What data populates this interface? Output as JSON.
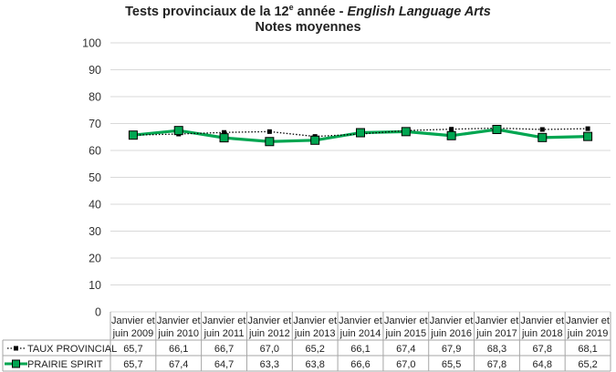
{
  "title": {
    "prefix": "Tests provinciaux de la 12",
    "sup": "e",
    "middle": " année - ",
    "italic": "English Language Arts",
    "subtitle": "Notes moyennes"
  },
  "chart_data": {
    "type": "line",
    "title": "Tests provinciaux de la 12e année - English Language Arts",
    "subtitle": "Notes moyennes",
    "ylim": [
      0,
      100
    ],
    "yticks": [
      0,
      10,
      20,
      30,
      40,
      50,
      60,
      70,
      80,
      90,
      100
    ],
    "grid": true,
    "legend": "table-bottom",
    "categories": [
      [
        "Janvier et",
        "juin 2009"
      ],
      [
        "Janvier et",
        "juin 2010"
      ],
      [
        "Janvier et",
        "juin 2011"
      ],
      [
        "Janvier et",
        "juin 2012"
      ],
      [
        "Janvier et",
        "juin 2013"
      ],
      [
        "Janvier et",
        "juin 2014"
      ],
      [
        "Janvier et",
        "juin 2015"
      ],
      [
        "Janvier et",
        "juin 2016"
      ],
      [
        "Janvier et",
        "juin 2017"
      ],
      [
        "Janvier et",
        "juin 2018"
      ],
      [
        "Janvier et",
        "juin 2019"
      ]
    ],
    "series": [
      {
        "name": "TAUX PROVINCIAL",
        "color": "#000000",
        "style": "dotted",
        "values": [
          65.7,
          66.1,
          66.7,
          67.0,
          65.2,
          66.1,
          67.4,
          67.9,
          68.3,
          67.8,
          68.1
        ],
        "labels": [
          "65,7",
          "66,1",
          "66,7",
          "67,0",
          "65,2",
          "66,1",
          "67,4",
          "67,9",
          "68,3",
          "67,8",
          "68,1"
        ]
      },
      {
        "name": "PRAIRIE SPIRIT",
        "color": "#00a651",
        "style": "solid",
        "values": [
          65.7,
          67.4,
          64.7,
          63.3,
          63.8,
          66.6,
          67.0,
          65.5,
          67.8,
          64.8,
          65.2
        ],
        "labels": [
          "65,7",
          "67,4",
          "64,7",
          "63,3",
          "63,8",
          "66,6",
          "67,0",
          "65,5",
          "67,8",
          "64,8",
          "65,2"
        ]
      }
    ]
  }
}
